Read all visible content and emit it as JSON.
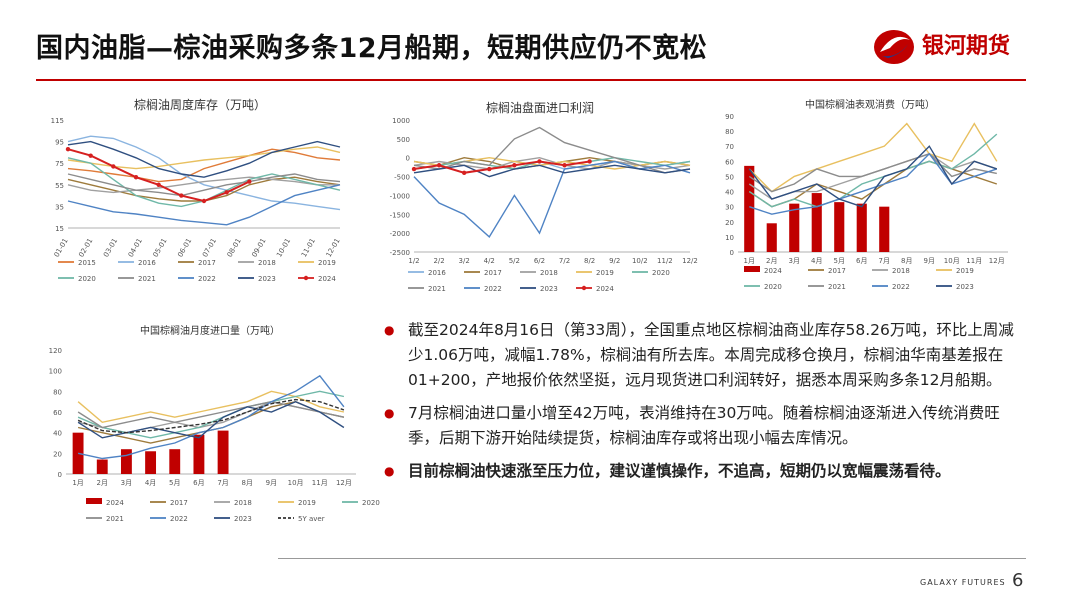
{
  "header": {
    "title": "国内油脂—棕油采购多条12月船期，短期供应仍不宽松",
    "logo_text": "银河期货",
    "brand_color": "#c00000"
  },
  "footer": {
    "brand": "GALAXY FUTURES",
    "page_number": "6"
  },
  "bullets": [
    "截至2024年8月16日（第33周），全国重点地区棕榈油商业库存58.26万吨，环比上周减少1.06万吨，减幅1.78%，棕榈油有所去库。本周完成移仓换月，棕榈油华南基差报在01+200，产地报价依然坚挺，远月现货进口利润转好，据悉本周采购多条12月船期。",
    "7月棕榈油进口量小增至42万吨，表消维持在30万吨。随着棕榈油逐渐进入传统消费旺季，后期下游开始陆续提货，棕榈油库存或将出现小幅去库情况。",
    "目前棕榈油快速涨至压力位，建议谨慎操作，不追高，短期仍以宽幅震荡看待。"
  ],
  "chart_data": [
    {
      "id": "weekly_inventory",
      "type": "line",
      "title": "棕榈油周度库存（万吨）",
      "x_ticks": [
        "01-01",
        "02-01",
        "03-01",
        "04-01",
        "05-01",
        "06-01",
        "07-01",
        "08-01",
        "09-01",
        "10-01",
        "11-01",
        "12-01"
      ],
      "ylim": [
        15,
        115
      ],
      "y_ticks": [
        15,
        35,
        55,
        75,
        95,
        115
      ],
      "series": [
        {
          "name": "2015",
          "color": "#e07b39",
          "values": [
            70,
            68,
            65,
            62,
            58,
            60,
            70,
            76,
            82,
            88,
            85,
            80,
            78
          ]
        },
        {
          "name": "2016",
          "color": "#8ab4e0",
          "values": [
            95,
            100,
            98,
            90,
            80,
            65,
            55,
            50,
            45,
            40,
            38,
            35,
            32
          ]
        },
        {
          "name": "2017",
          "color": "#9e7b3c",
          "values": [
            60,
            55,
            50,
            45,
            42,
            40,
            40,
            45,
            55,
            60,
            62,
            58,
            55
          ]
        },
        {
          "name": "2018",
          "color": "#a0a0a0",
          "values": [
            55,
            50,
            48,
            50,
            52,
            55,
            58,
            60,
            62,
            60,
            58,
            55,
            55
          ]
        },
        {
          "name": "2019",
          "color": "#e8c060",
          "values": [
            78,
            75,
            72,
            70,
            72,
            75,
            78,
            80,
            82,
            85,
            88,
            90,
            85
          ]
        },
        {
          "name": "2020",
          "color": "#6fb8a8",
          "values": [
            80,
            75,
            60,
            45,
            38,
            35,
            40,
            50,
            60,
            65,
            60,
            55,
            50
          ]
        },
        {
          "name": "2021",
          "color": "#8c8c8c",
          "values": [
            65,
            60,
            55,
            50,
            48,
            45,
            50,
            55,
            58,
            62,
            65,
            60,
            58
          ]
        },
        {
          "name": "2022",
          "color": "#4f83c4",
          "values": [
            40,
            35,
            30,
            28,
            25,
            22,
            20,
            18,
            25,
            35,
            45,
            50,
            55
          ]
        },
        {
          "name": "2023",
          "color": "#2f4f80",
          "values": [
            92,
            95,
            88,
            80,
            70,
            65,
            62,
            68,
            75,
            85,
            90,
            95,
            90
          ]
        },
        {
          "name": "2024",
          "color": "#d62020",
          "values": [
            88,
            82,
            72,
            62,
            55,
            45,
            40,
            48,
            58
          ]
        }
      ]
    },
    {
      "id": "import_profit",
      "type": "line",
      "title": "棕榈油盘面进口利润",
      "x_ticks": [
        "1/2",
        "2/2",
        "3/2",
        "4/2",
        "5/2",
        "6/2",
        "7/2",
        "8/2",
        "9/2",
        "10/2",
        "11/2",
        "12/2"
      ],
      "ylim": [
        -2500,
        1000
      ],
      "y_ticks": [
        1000,
        500,
        0,
        -500,
        -1000,
        -1500,
        -2000,
        -2500
      ],
      "series": [
        {
          "name": "2016",
          "color": "#8ab4e0",
          "values": [
            -300,
            -200,
            -400,
            -300,
            -200,
            -100,
            -300,
            -200,
            -100,
            -300,
            -200,
            -100
          ]
        },
        {
          "name": "2017",
          "color": "#9e7b3c",
          "values": [
            -100,
            -200,
            0,
            -100,
            -300,
            -200,
            -100,
            0,
            -100,
            -200,
            -100,
            -200
          ]
        },
        {
          "name": "2018",
          "color": "#a0a0a0",
          "values": [
            -200,
            -100,
            -200,
            -300,
            -100,
            0,
            -200,
            -300,
            -100,
            -200,
            -300,
            -200
          ]
        },
        {
          "name": "2019",
          "color": "#e8c060",
          "values": [
            -100,
            -200,
            -100,
            0,
            -100,
            -200,
            -100,
            -200,
            -300,
            -200,
            -100,
            -200
          ]
        },
        {
          "name": "2020",
          "color": "#6fb8a8",
          "values": [
            -300,
            -200,
            -100,
            -200,
            -300,
            -100,
            -200,
            -100,
            0,
            -100,
            -200,
            -100
          ]
        },
        {
          "name": "2021",
          "color": "#8c8c8c",
          "values": [
            -200,
            -300,
            -100,
            -200,
            500,
            800,
            400,
            200,
            0,
            -200,
            -400,
            -300
          ]
        },
        {
          "name": "2022",
          "color": "#4f83c4",
          "values": [
            -500,
            -1200,
            -1500,
            -2100,
            -1000,
            -2000,
            -300,
            -200,
            -100,
            -300,
            -200,
            -400
          ]
        },
        {
          "name": "2023",
          "color": "#2f4f80",
          "values": [
            -400,
            -300,
            -200,
            -500,
            -300,
            -200,
            -400,
            -300,
            -200,
            -300,
            -400,
            -300
          ]
        },
        {
          "name": "2024",
          "color": "#d62020",
          "values": [
            -300,
            -200,
            -400,
            -300,
            -200,
            -100,
            -200,
            -100
          ]
        }
      ]
    },
    {
      "id": "apparent_consumption",
      "type": "bar+line",
      "title": "中国棕榈油表观消费（万吨）",
      "categories": [
        "1月",
        "2月",
        "3月",
        "4月",
        "5月",
        "6月",
        "7月",
        "8月",
        "9月",
        "10月",
        "11月",
        "12月"
      ],
      "ylim": [
        0,
        90
      ],
      "y_ticks": [
        0,
        10,
        20,
        30,
        40,
        50,
        60,
        70,
        80,
        90
      ],
      "bars": {
        "name": "2024",
        "color": "#c00000",
        "values": [
          57,
          19,
          32,
          39,
          33,
          32,
          30
        ]
      },
      "series": [
        {
          "name": "2017",
          "color": "#9e7b3c",
          "values": [
            40,
            30,
            35,
            45,
            40,
            35,
            45,
            55,
            60,
            55,
            50,
            45
          ]
        },
        {
          "name": "2018",
          "color": "#a0a0a0",
          "values": [
            45,
            35,
            40,
            40,
            45,
            50,
            55,
            60,
            65,
            55,
            60,
            55
          ]
        },
        {
          "name": "2019",
          "color": "#e8c060",
          "values": [
            55,
            40,
            50,
            55,
            60,
            65,
            70,
            85,
            65,
            60,
            85,
            60
          ]
        },
        {
          "name": "2020",
          "color": "#6fb8a8",
          "values": [
            40,
            30,
            35,
            30,
            35,
            45,
            50,
            55,
            60,
            55,
            65,
            78
          ]
        },
        {
          "name": "2021",
          "color": "#8c8c8c",
          "values": [
            50,
            40,
            45,
            55,
            50,
            50,
            55,
            60,
            65,
            50,
            55,
            52
          ]
        },
        {
          "name": "2022",
          "color": "#4f83c4",
          "values": [
            30,
            25,
            28,
            30,
            35,
            40,
            45,
            50,
            65,
            45,
            50,
            55
          ]
        },
        {
          "name": "2023",
          "color": "#2f4f80",
          "values": [
            55,
            35,
            40,
            45,
            35,
            30,
            50,
            55,
            70,
            45,
            60,
            55
          ]
        }
      ]
    },
    {
      "id": "monthly_imports",
      "type": "bar+line",
      "title": "中国棕榈油月度进口量（万吨）",
      "categories": [
        "1月",
        "2月",
        "3月",
        "4月",
        "5月",
        "6月",
        "7月",
        "8月",
        "9月",
        "10月",
        "11月",
        "12月"
      ],
      "ylim": [
        0,
        120
      ],
      "y_ticks": [
        0,
        20,
        40,
        60,
        80,
        100,
        120
      ],
      "bars": {
        "name": "2024",
        "color": "#c00000",
        "values": [
          40,
          14,
          24,
          22,
          24,
          38,
          42
        ]
      },
      "series": [
        {
          "name": "2017",
          "color": "#9e7b3c",
          "values": [
            45,
            40,
            35,
            30,
            35,
            40,
            45,
            55,
            65,
            70,
            60,
            55
          ]
        },
        {
          "name": "2018",
          "color": "#a0a0a0",
          "values": [
            50,
            45,
            40,
            45,
            50,
            45,
            50,
            60,
            70,
            65,
            60,
            55
          ]
        },
        {
          "name": "2019",
          "color": "#e8c060",
          "values": [
            70,
            50,
            55,
            60,
            55,
            60,
            65,
            70,
            80,
            75,
            65,
            60
          ]
        },
        {
          "name": "2020",
          "color": "#6fb8a8",
          "values": [
            55,
            45,
            40,
            35,
            40,
            45,
            55,
            65,
            70,
            75,
            80,
            75
          ]
        },
        {
          "name": "2021",
          "color": "#8c8c8c",
          "values": [
            60,
            45,
            50,
            55,
            50,
            55,
            60,
            65,
            70,
            65,
            60,
            55
          ]
        },
        {
          "name": "2022",
          "color": "#4f83c4",
          "values": [
            20,
            15,
            18,
            25,
            30,
            40,
            45,
            55,
            70,
            80,
            95,
            65
          ]
        },
        {
          "name": "2023",
          "color": "#2f4f80",
          "values": [
            50,
            35,
            40,
            45,
            40,
            35,
            55,
            65,
            60,
            70,
            60,
            45
          ]
        },
        {
          "name": "5Y aver",
          "color": "#333333",
          "dashed": true,
          "values": [
            52,
            42,
            40,
            42,
            45,
            48,
            52,
            60,
            68,
            72,
            70,
            62
          ]
        }
      ]
    }
  ]
}
